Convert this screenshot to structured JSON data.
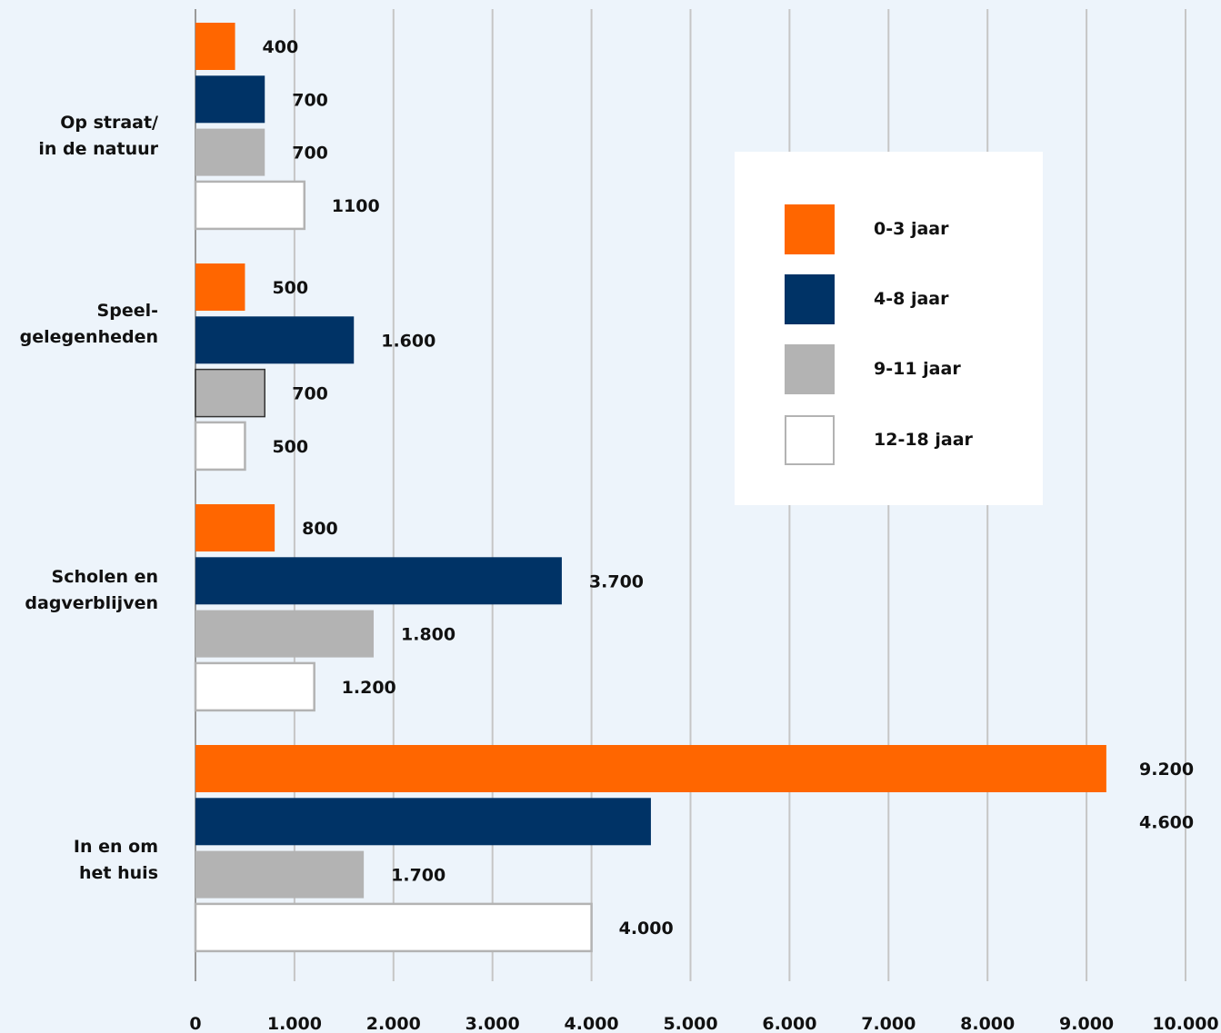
{
  "chart_data": {
    "type": "bar",
    "orientation": "horizontal",
    "categories": [
      [
        "Op straat/",
        "in de natuur"
      ],
      [
        "Speel-",
        "gelegenheden"
      ],
      [
        "Scholen en",
        "dagverblijven"
      ],
      [
        "In en om",
        "het huis"
      ]
    ],
    "series": [
      {
        "name": "0-3 jaar",
        "color": "#ff6600",
        "values": [
          400,
          500,
          800,
          9200
        ],
        "labels": [
          "400",
          "500",
          "800",
          "9.200"
        ]
      },
      {
        "name": "4-8 jaar",
        "color": "#003366",
        "values": [
          700,
          1600,
          3700,
          4600
        ],
        "labels": [
          "700",
          "1.600",
          "3.700",
          "4.600"
        ]
      },
      {
        "name": "9-11 jaar",
        "color": "#b3b3b3",
        "values": [
          700,
          700,
          1800,
          1700
        ],
        "labels": [
          "700",
          "700",
          "1.800",
          "1.700"
        ]
      },
      {
        "name": "12-18 jaar",
        "color": "#ffffff",
        "values": [
          1100,
          500,
          1200,
          4000
        ],
        "labels": [
          "1100",
          "500",
          "1.200",
          "4.000"
        ]
      }
    ],
    "xlim": [
      0,
      10000
    ],
    "xticks": [
      0,
      1000,
      2000,
      3000,
      4000,
      5000,
      6000,
      7000,
      8000,
      9000,
      10000
    ],
    "xtick_labels": [
      "0",
      "1.000",
      "2.000",
      "3.000",
      "4.000",
      "5.000",
      "6.000",
      "7.000",
      "8.000",
      "9.000",
      "10.000"
    ],
    "grid": true,
    "legend_position": "right",
    "title": "",
    "xlabel": "",
    "ylabel": ""
  }
}
